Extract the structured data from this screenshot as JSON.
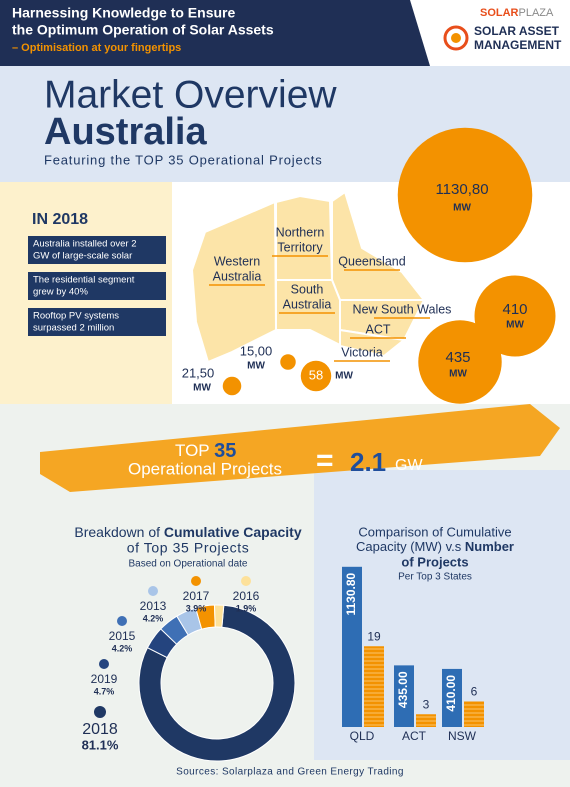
{
  "header": {
    "title": [
      "Harnessing Knowledge to Ensure",
      "the Optimum Operation of Solar Assets"
    ],
    "tagline": "– Optimisation at your fingertips",
    "logo": {
      "brand_a": "SOLAR",
      "brand_b": "PLAZA",
      "product": [
        "SOLAR ASSET",
        "MANAGEMENT"
      ]
    }
  },
  "hero": {
    "title": "Market Overview",
    "country": "Australia",
    "subtitle": "Featuring the TOP 35 Operational Projects"
  },
  "highlights": {
    "heading": "IN 2018",
    "facts": [
      [
        "Australia installed over 2",
        "GW of  large-scale solar"
      ],
      [
        "The residential segment",
        "grew by 40%"
      ],
      [
        "Rooftop PV systems",
        "surpassed 2 million"
      ]
    ]
  },
  "map": {
    "regions": [
      [
        "Western",
        "Australia"
      ],
      [
        "Northern",
        "Territory"
      ],
      [
        "Queensland"
      ],
      [
        "South",
        "Australia"
      ],
      [
        "New South Wales"
      ],
      [
        "ACT"
      ],
      [
        "Victoria"
      ]
    ],
    "bubbles": [
      {
        "value": 1130.8,
        "label": "1130,80",
        "unit": "MW"
      },
      {
        "value": 410,
        "label": "410",
        "unit": "MW"
      },
      {
        "value": 435,
        "label": "435",
        "unit": "MW"
      },
      {
        "value": 58,
        "label": "58",
        "unit": "MW"
      },
      {
        "value": 15,
        "label": "15,00",
        "unit": "MW"
      },
      {
        "value": 21.5,
        "label": "21,50",
        "unit": "MW"
      }
    ]
  },
  "banner": {
    "top": "TOP",
    "count": "35",
    "projects": "Operational Projects",
    "equals": "=",
    "total": "2.1",
    "unit": "GW"
  },
  "chart_data": [
    {
      "type": "pie",
      "donut": true,
      "title": [
        "Breakdown of",
        "Cumulative Capacity",
        "of Top 35 Projects"
      ],
      "subtitle": "Based on Operational date",
      "categories": [
        "2018",
        "2019",
        "2015",
        "2013",
        "2017",
        "2016"
      ],
      "values": [
        81.1,
        4.7,
        4.2,
        4.2,
        3.9,
        1.9
      ],
      "value_labels": [
        "81.1%",
        "4.7%",
        "4.2%",
        "4.2%",
        "3.9%",
        "1.9%"
      ],
      "colors": [
        "#1f3864",
        "#24447e",
        "#3f70b5",
        "#a9c5e8",
        "#f39200",
        "#fde19a"
      ]
    },
    {
      "type": "bar",
      "title": [
        "Comparison of Cumulative",
        "Capacity (MW) v.s",
        "Number",
        "of Projects"
      ],
      "subtitle": "Per Top 3 States",
      "categories": [
        "QLD",
        "ACT",
        "NSW"
      ],
      "ylim": [
        0,
        1200
      ],
      "y2lim": [
        0,
        40
      ],
      "series": [
        {
          "color": "#2e6db4",
          "values": [
            1130.8,
            435,
            410
          ],
          "value_labels": [
            "1130.80",
            "435.00",
            "410.00"
          ]
        },
        {
          "color": "#f39200",
          "axis": "y2",
          "values": [
            19,
            3,
            6
          ]
        }
      ]
    }
  ],
  "source": "Sources: Solarplaza and Green Energy Trading"
}
